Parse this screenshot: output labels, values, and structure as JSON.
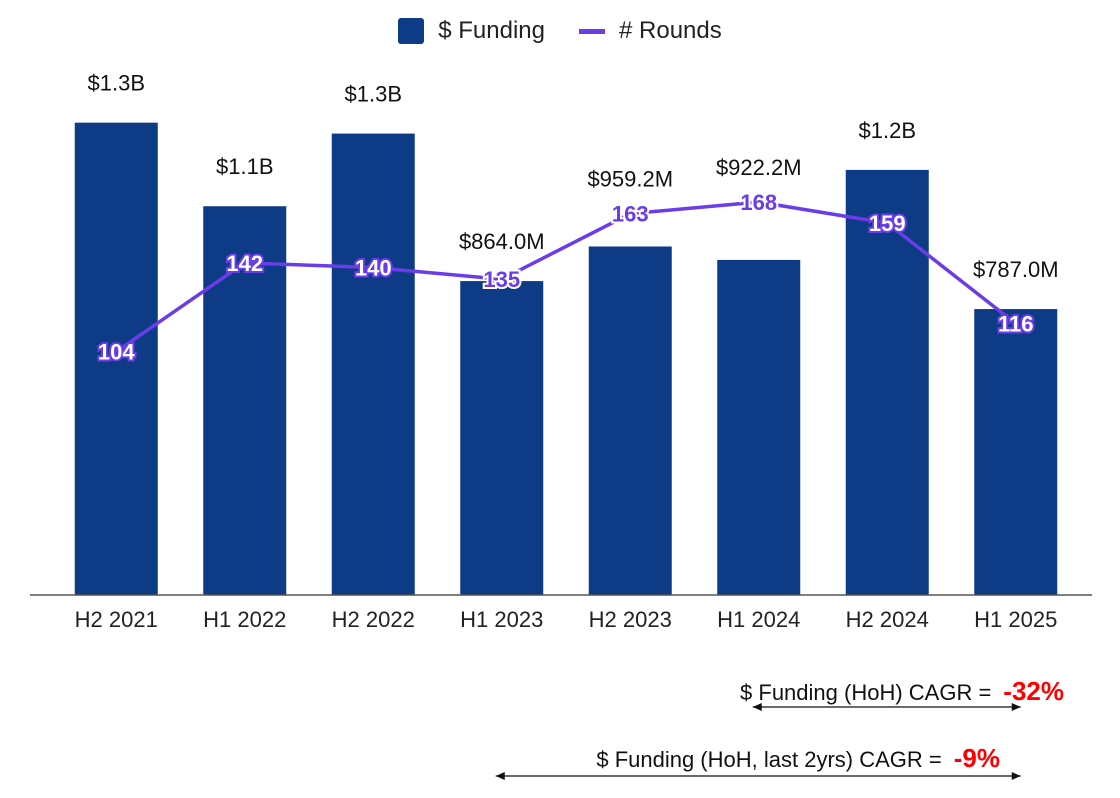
{
  "chart_data": {
    "type": "bar",
    "categories": [
      "H2 2021",
      "H1 2022",
      "H2 2022",
      "H1 2023",
      "H2 2023",
      "H1 2024",
      "H2 2024",
      "H1 2025"
    ],
    "series": [
      {
        "name": "$ Funding",
        "type": "bar",
        "axis": "left",
        "color": "#0d3b85",
        "values": [
          1.3,
          1.07,
          1.27,
          0.864,
          0.9592,
          0.9222,
          1.17,
          0.787
        ],
        "labels": [
          "$1.3B",
          "$1.1B",
          "$1.3B",
          "$864.0M",
          "$959.2M",
          "$922.2M",
          "$1.2B",
          "$787.0M"
        ]
      },
      {
        "name": "# Rounds",
        "type": "line",
        "axis": "right",
        "color": "#6a3de8",
        "values": [
          104,
          142,
          140,
          135,
          163,
          168,
          159,
          116
        ],
        "labels": [
          "104",
          "142",
          "140",
          "135",
          "163",
          "168",
          "159",
          "116"
        ]
      }
    ],
    "ylim": [
      0,
      1.5
    ],
    "y2lim": [
      0,
      233
    ],
    "legend": "top-center",
    "grid": false,
    "annotations": [
      {
        "text": "$ Funding (HoH) CAGR =",
        "value": "-32%",
        "from": "H1 2024",
        "to": "H1 2025"
      },
      {
        "text": "$ Funding (HoH, last 2yrs) CAGR =",
        "value": "-9%",
        "from": "H1 2023",
        "to": "H1 2025"
      }
    ]
  }
}
